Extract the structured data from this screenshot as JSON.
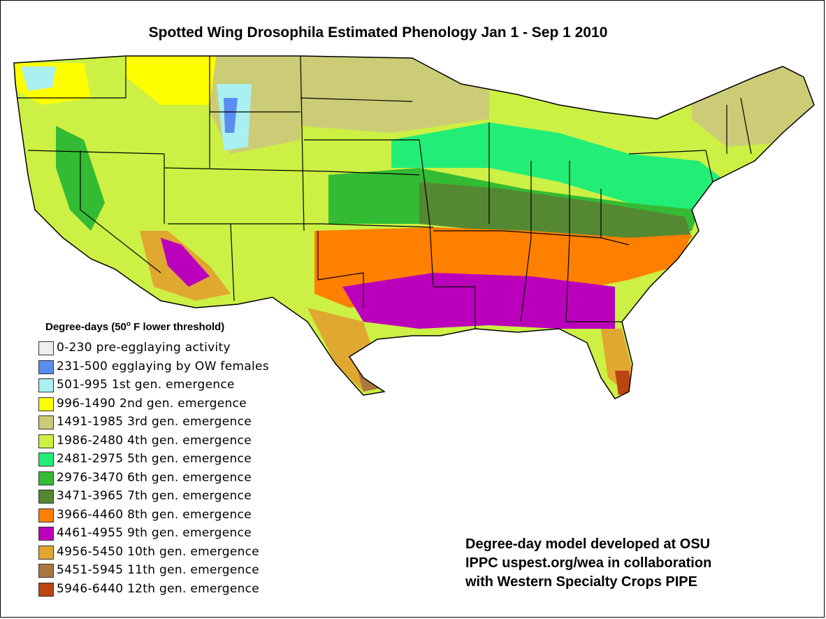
{
  "map": {
    "title": "Spotted Wing Drosophila Estimated Phenology Jan 1 - Sep 1 2010",
    "region": "contiguous-united-states"
  },
  "legend": {
    "title_prefix": "Degree-days (50",
    "title_degree": "o",
    "title_suffix": " F lower threshold)",
    "items": [
      {
        "label": "0-230  pre-egglaying activity",
        "color": "#eeeeee"
      },
      {
        "label": "231-500 egglaying by OW females",
        "color": "#5b8cf0"
      },
      {
        "label": "501-995  1st gen. emergence",
        "color": "#aaf0f0"
      },
      {
        "label": "996-1490  2nd gen. emergence",
        "color": "#ffff00"
      },
      {
        "label": "1491-1985  3rd gen. emergence",
        "color": "#cccc77"
      },
      {
        "label": "1986-2480  4th gen. emergence",
        "color": "#ccf044"
      },
      {
        "label": "2481-2975  5th gen. emergence",
        "color": "#22ee77"
      },
      {
        "label": "2976-3470  6th gen. emergence",
        "color": "#33bb33"
      },
      {
        "label": "3471-3965  7th gen. emergence",
        "color": "#558833"
      },
      {
        "label": "3966-4460  8th gen. emergence",
        "color": "#ff8000"
      },
      {
        "label": "4461-4955  9th gen. emergence",
        "color": "#bb00bb"
      },
      {
        "label": "4956-5450  10th gen. emergence",
        "color": "#e0a830"
      },
      {
        "label": "5451-5945  11th gen. emergence",
        "color": "#aa7740"
      },
      {
        "label": "5946-6440  12th gen. emergence",
        "color": "#bb4411"
      }
    ]
  },
  "credits": {
    "line1": "Degree-day model developed at OSU",
    "line2": "IPPC uspest.org/wea in collaboration",
    "line3": "with Western Specialty Crops PIPE"
  }
}
